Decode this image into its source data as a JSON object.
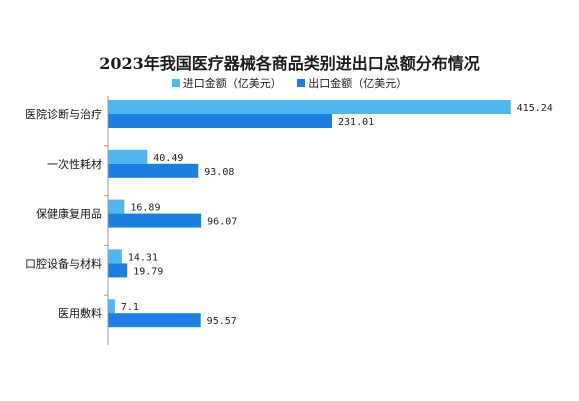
{
  "chart_data": {
    "type": "bar",
    "orientation": "horizontal",
    "title": "2023年我国医疗器械各商品类别进出口总额分布情况",
    "categories": [
      "医院诊断与治疗",
      "一次性耗材",
      "保健康复用品",
      "口腔设备与材料",
      "医用敷料"
    ],
    "series": [
      {
        "name": "进口金额（亿美元）",
        "color": "#4db8f0",
        "values": [
          415.24,
          40.49,
          16.89,
          14.31,
          7.1
        ]
      },
      {
        "name": "出口金额（亿美元）",
        "color": "#1a7fe0",
        "values": [
          231.01,
          93.08,
          96.07,
          19.79,
          95.57
        ]
      }
    ],
    "value_labels": [
      [
        "415.24",
        "40.49",
        "16.89",
        "14.31",
        "7.1"
      ],
      [
        "231.01",
        "93.08",
        "96.07",
        "19.79",
        "95.57"
      ]
    ],
    "legend": "top",
    "grid": false,
    "xlim": [
      0,
      430
    ]
  }
}
